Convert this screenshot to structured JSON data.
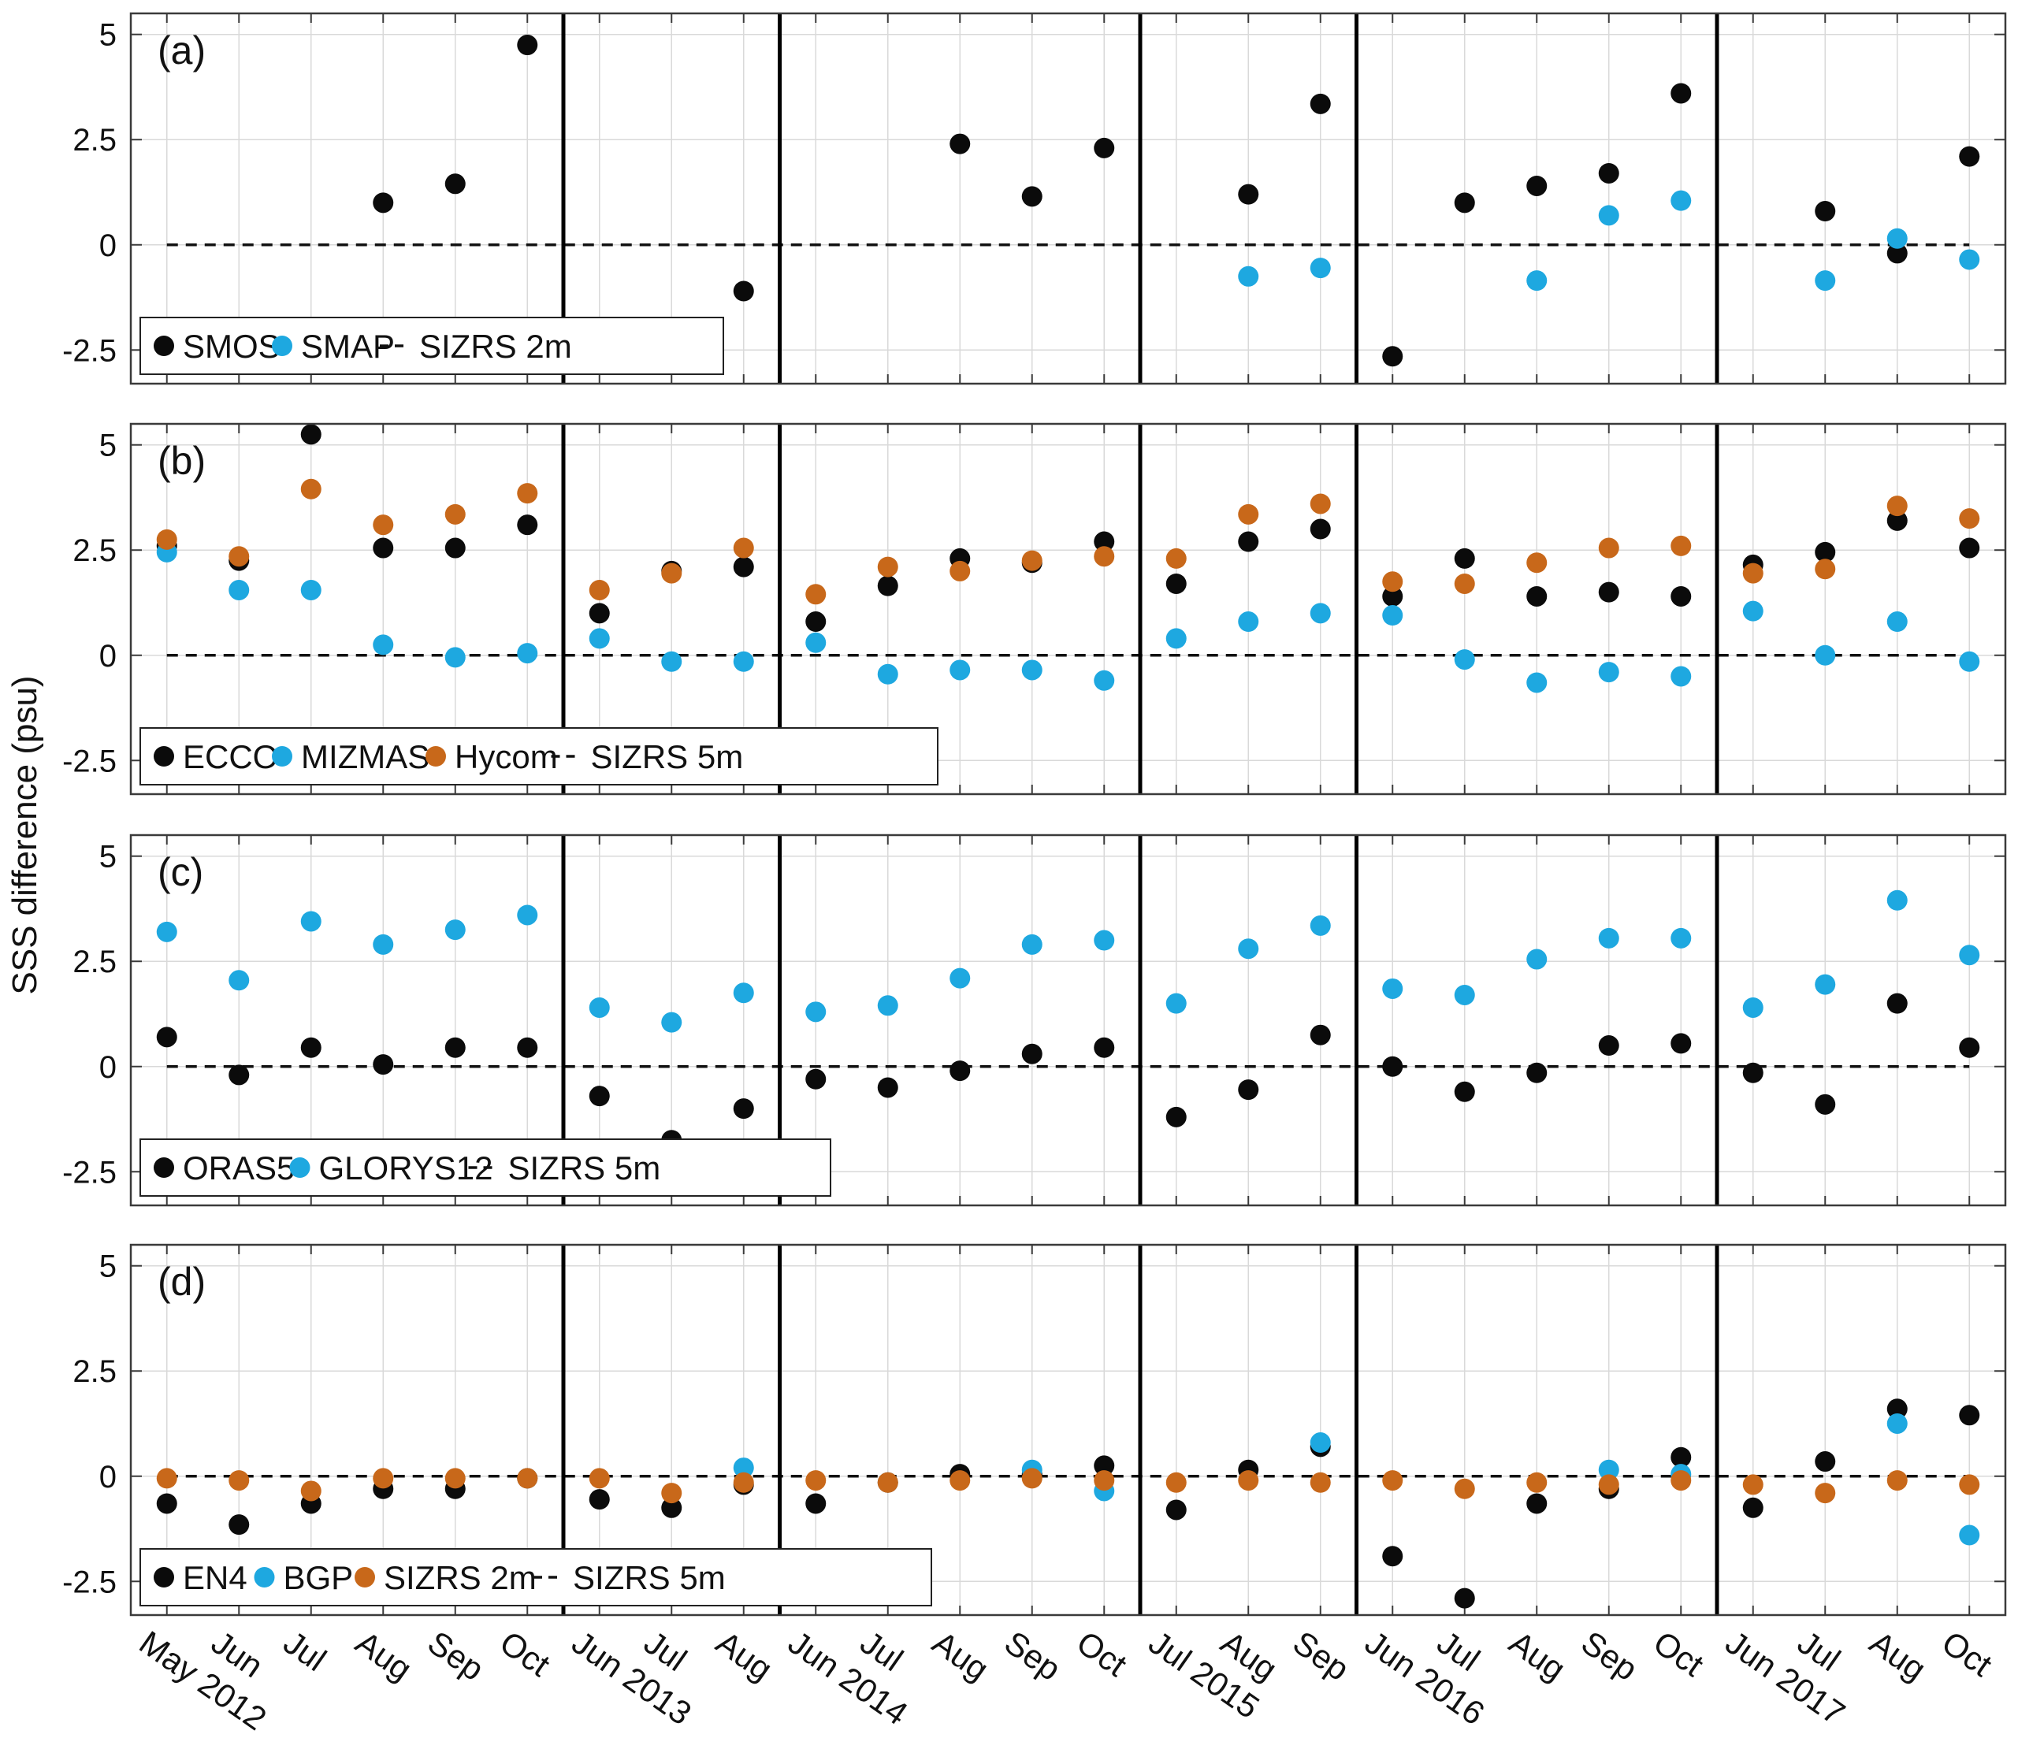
{
  "figure": {
    "ylabel": "SSS difference (psu)"
  },
  "colors": {
    "black": "#0b0b0b",
    "blue": "#1ea8e0",
    "orange": "#c8681a",
    "grid": "#d9d9d9",
    "axis": "#3a3a3a"
  },
  "chart_data": [
    {
      "type": "scatter",
      "panel": "(a)",
      "categories": [
        "May 2012",
        "Jun",
        "Jul",
        "Aug",
        "Sep",
        "Oct",
        "Jun 2013",
        "Jul",
        "Aug",
        "Jun 2014",
        "Jul",
        "Aug",
        "Sep",
        "Oct",
        "Jul 2015",
        "Aug",
        "Sep",
        "Jun 2016",
        "Jul",
        "Aug",
        "Sep",
        "Oct",
        "Jun 2017",
        "Jul",
        "Aug",
        "Oct"
      ],
      "yticks": [
        "5",
        "2.5",
        "0",
        "-2.5"
      ],
      "ylim": [
        -3.3,
        5.5
      ],
      "year_separators_after_index": [
        5,
        8,
        13,
        16,
        21
      ],
      "reference_line": {
        "name": "SIZRS 2m",
        "value": 0
      },
      "legend_position": "bottom-left",
      "series": [
        {
          "name": "SMOS",
          "color": "black",
          "values": [
            null,
            null,
            null,
            1.0,
            1.45,
            4.75,
            null,
            null,
            -1.1,
            null,
            null,
            2.4,
            1.15,
            2.3,
            null,
            1.2,
            3.35,
            -2.65,
            1.0,
            1.4,
            1.7,
            3.6,
            null,
            0.8,
            -0.2,
            2.1
          ]
        },
        {
          "name": "SMAP",
          "color": "blue",
          "values": [
            null,
            null,
            null,
            null,
            null,
            null,
            null,
            null,
            null,
            null,
            null,
            null,
            null,
            null,
            null,
            -0.75,
            -0.55,
            null,
            null,
            -0.85,
            0.7,
            1.05,
            null,
            -0.85,
            0.15,
            -0.35
          ]
        }
      ]
    },
    {
      "type": "scatter",
      "panel": "(b)",
      "categories": [
        "May 2012",
        "Jun",
        "Jul",
        "Aug",
        "Sep",
        "Oct",
        "Jun 2013",
        "Jul",
        "Aug",
        "Jun 2014",
        "Jul",
        "Aug",
        "Sep",
        "Oct",
        "Jul 2015",
        "Aug",
        "Sep",
        "Jun 2016",
        "Jul",
        "Aug",
        "Sep",
        "Oct",
        "Jun 2017",
        "Jul",
        "Aug",
        "Oct"
      ],
      "yticks": [
        "5",
        "2.5",
        "0",
        "-2.5"
      ],
      "ylim": [
        -3.3,
        5.5
      ],
      "year_separators_after_index": [
        5,
        8,
        13,
        16,
        21
      ],
      "reference_line": {
        "name": "SIZRS 5m",
        "value": 0
      },
      "legend_position": "bottom-left",
      "series": [
        {
          "name": "ECCO",
          "color": "black",
          "values": [
            2.6,
            2.25,
            5.25,
            2.55,
            2.55,
            3.1,
            1.0,
            2.0,
            2.1,
            0.8,
            1.65,
            2.3,
            2.2,
            2.7,
            1.7,
            2.7,
            3.0,
            1.4,
            2.3,
            1.4,
            1.5,
            1.4,
            2.15,
            2.45,
            3.2,
            2.55
          ]
        },
        {
          "name": "MIZMAS",
          "color": "blue",
          "values": [
            2.45,
            1.55,
            1.55,
            0.25,
            -0.05,
            0.05,
            0.4,
            -0.15,
            -0.15,
            0.3,
            -0.45,
            -0.35,
            -0.35,
            -0.6,
            0.4,
            0.8,
            1.0,
            0.95,
            -0.1,
            -0.65,
            -0.4,
            -0.5,
            1.05,
            0.0,
            0.8,
            -0.15
          ]
        },
        {
          "name": "Hycom",
          "color": "orange",
          "values": [
            2.75,
            2.35,
            3.95,
            3.1,
            3.35,
            3.85,
            1.55,
            1.95,
            2.55,
            1.45,
            2.1,
            2.0,
            2.25,
            2.35,
            2.3,
            3.35,
            3.6,
            1.75,
            1.7,
            2.2,
            2.55,
            2.6,
            1.95,
            2.05,
            3.55,
            3.25
          ]
        }
      ]
    },
    {
      "type": "scatter",
      "panel": "(c)",
      "categories": [
        "May 2012",
        "Jun",
        "Jul",
        "Aug",
        "Sep",
        "Oct",
        "Jun 2013",
        "Jul",
        "Aug",
        "Jun 2014",
        "Jul",
        "Aug",
        "Sep",
        "Oct",
        "Jul 2015",
        "Aug",
        "Sep",
        "Jun 2016",
        "Jul",
        "Aug",
        "Sep",
        "Oct",
        "Jun 2017",
        "Jul",
        "Aug",
        "Oct"
      ],
      "yticks": [
        "5",
        "2.5",
        "0",
        "-2.5"
      ],
      "ylim": [
        -3.3,
        5.5
      ],
      "year_separators_after_index": [
        5,
        8,
        13,
        16,
        21
      ],
      "reference_line": {
        "name": "SIZRS 5m",
        "value": 0
      },
      "legend_position": "bottom-left",
      "series": [
        {
          "name": "ORAS5",
          "color": "black",
          "values": [
            0.7,
            -0.2,
            0.45,
            0.05,
            0.45,
            0.45,
            -0.7,
            -1.75,
            -1.0,
            -0.3,
            -0.5,
            -0.1,
            0.3,
            0.45,
            -1.2,
            -0.55,
            0.75,
            0.0,
            -0.6,
            -0.15,
            0.5,
            0.55,
            -0.15,
            -0.9,
            1.5,
            0.45
          ]
        },
        {
          "name": "GLORYS12",
          "color": "blue",
          "values": [
            3.2,
            2.05,
            3.45,
            2.9,
            3.25,
            3.6,
            1.4,
            1.05,
            1.75,
            1.3,
            1.45,
            2.1,
            2.9,
            3.0,
            1.5,
            2.8,
            3.35,
            1.85,
            1.7,
            2.55,
            3.05,
            3.05,
            1.4,
            1.95,
            3.95,
            2.65
          ]
        }
      ]
    },
    {
      "type": "scatter",
      "panel": "(d)",
      "categories": [
        "May 2012",
        "Jun",
        "Jul",
        "Aug",
        "Sep",
        "Oct",
        "Jun 2013",
        "Jul",
        "Aug",
        "Jun 2014",
        "Jul",
        "Aug",
        "Sep",
        "Oct",
        "Jul 2015",
        "Aug",
        "Sep",
        "Jun 2016",
        "Jul",
        "Aug",
        "Sep",
        "Oct",
        "Jun 2017",
        "Jul",
        "Aug",
        "Oct"
      ],
      "yticks": [
        "5",
        "2.5",
        "0",
        "-2.5"
      ],
      "ylim": [
        -3.3,
        5.5
      ],
      "year_separators_after_index": [
        5,
        8,
        13,
        16,
        21
      ],
      "reference_line": {
        "name": "SIZRS 5m",
        "value": 0
      },
      "legend_position": "bottom-left",
      "series": [
        {
          "name": "EN4",
          "color": "black",
          "values": [
            -0.65,
            -1.15,
            -0.65,
            -0.3,
            -0.3,
            -0.05,
            -0.55,
            -0.75,
            -0.2,
            -0.65,
            -0.15,
            0.05,
            0.05,
            0.25,
            -0.8,
            0.15,
            0.7,
            -1.9,
            -2.9,
            -0.65,
            -0.3,
            0.45,
            -0.75,
            0.35,
            1.6,
            1.45
          ]
        },
        {
          "name": "BGP",
          "color": "blue",
          "values": [
            null,
            null,
            null,
            null,
            null,
            null,
            null,
            null,
            0.2,
            null,
            null,
            null,
            0.15,
            -0.35,
            null,
            null,
            0.8,
            null,
            null,
            null,
            0.15,
            0.05,
            null,
            null,
            1.25,
            -1.4
          ]
        },
        {
          "name": "SIZRS 2m",
          "color": "orange",
          "values": [
            -0.05,
            -0.1,
            -0.35,
            -0.05,
            -0.05,
            -0.05,
            -0.05,
            -0.4,
            -0.15,
            -0.1,
            -0.15,
            -0.1,
            -0.05,
            -0.1,
            -0.15,
            -0.1,
            -0.15,
            -0.1,
            -0.3,
            -0.15,
            -0.2,
            -0.1,
            -0.2,
            -0.4,
            -0.1,
            -0.2
          ]
        }
      ]
    }
  ]
}
